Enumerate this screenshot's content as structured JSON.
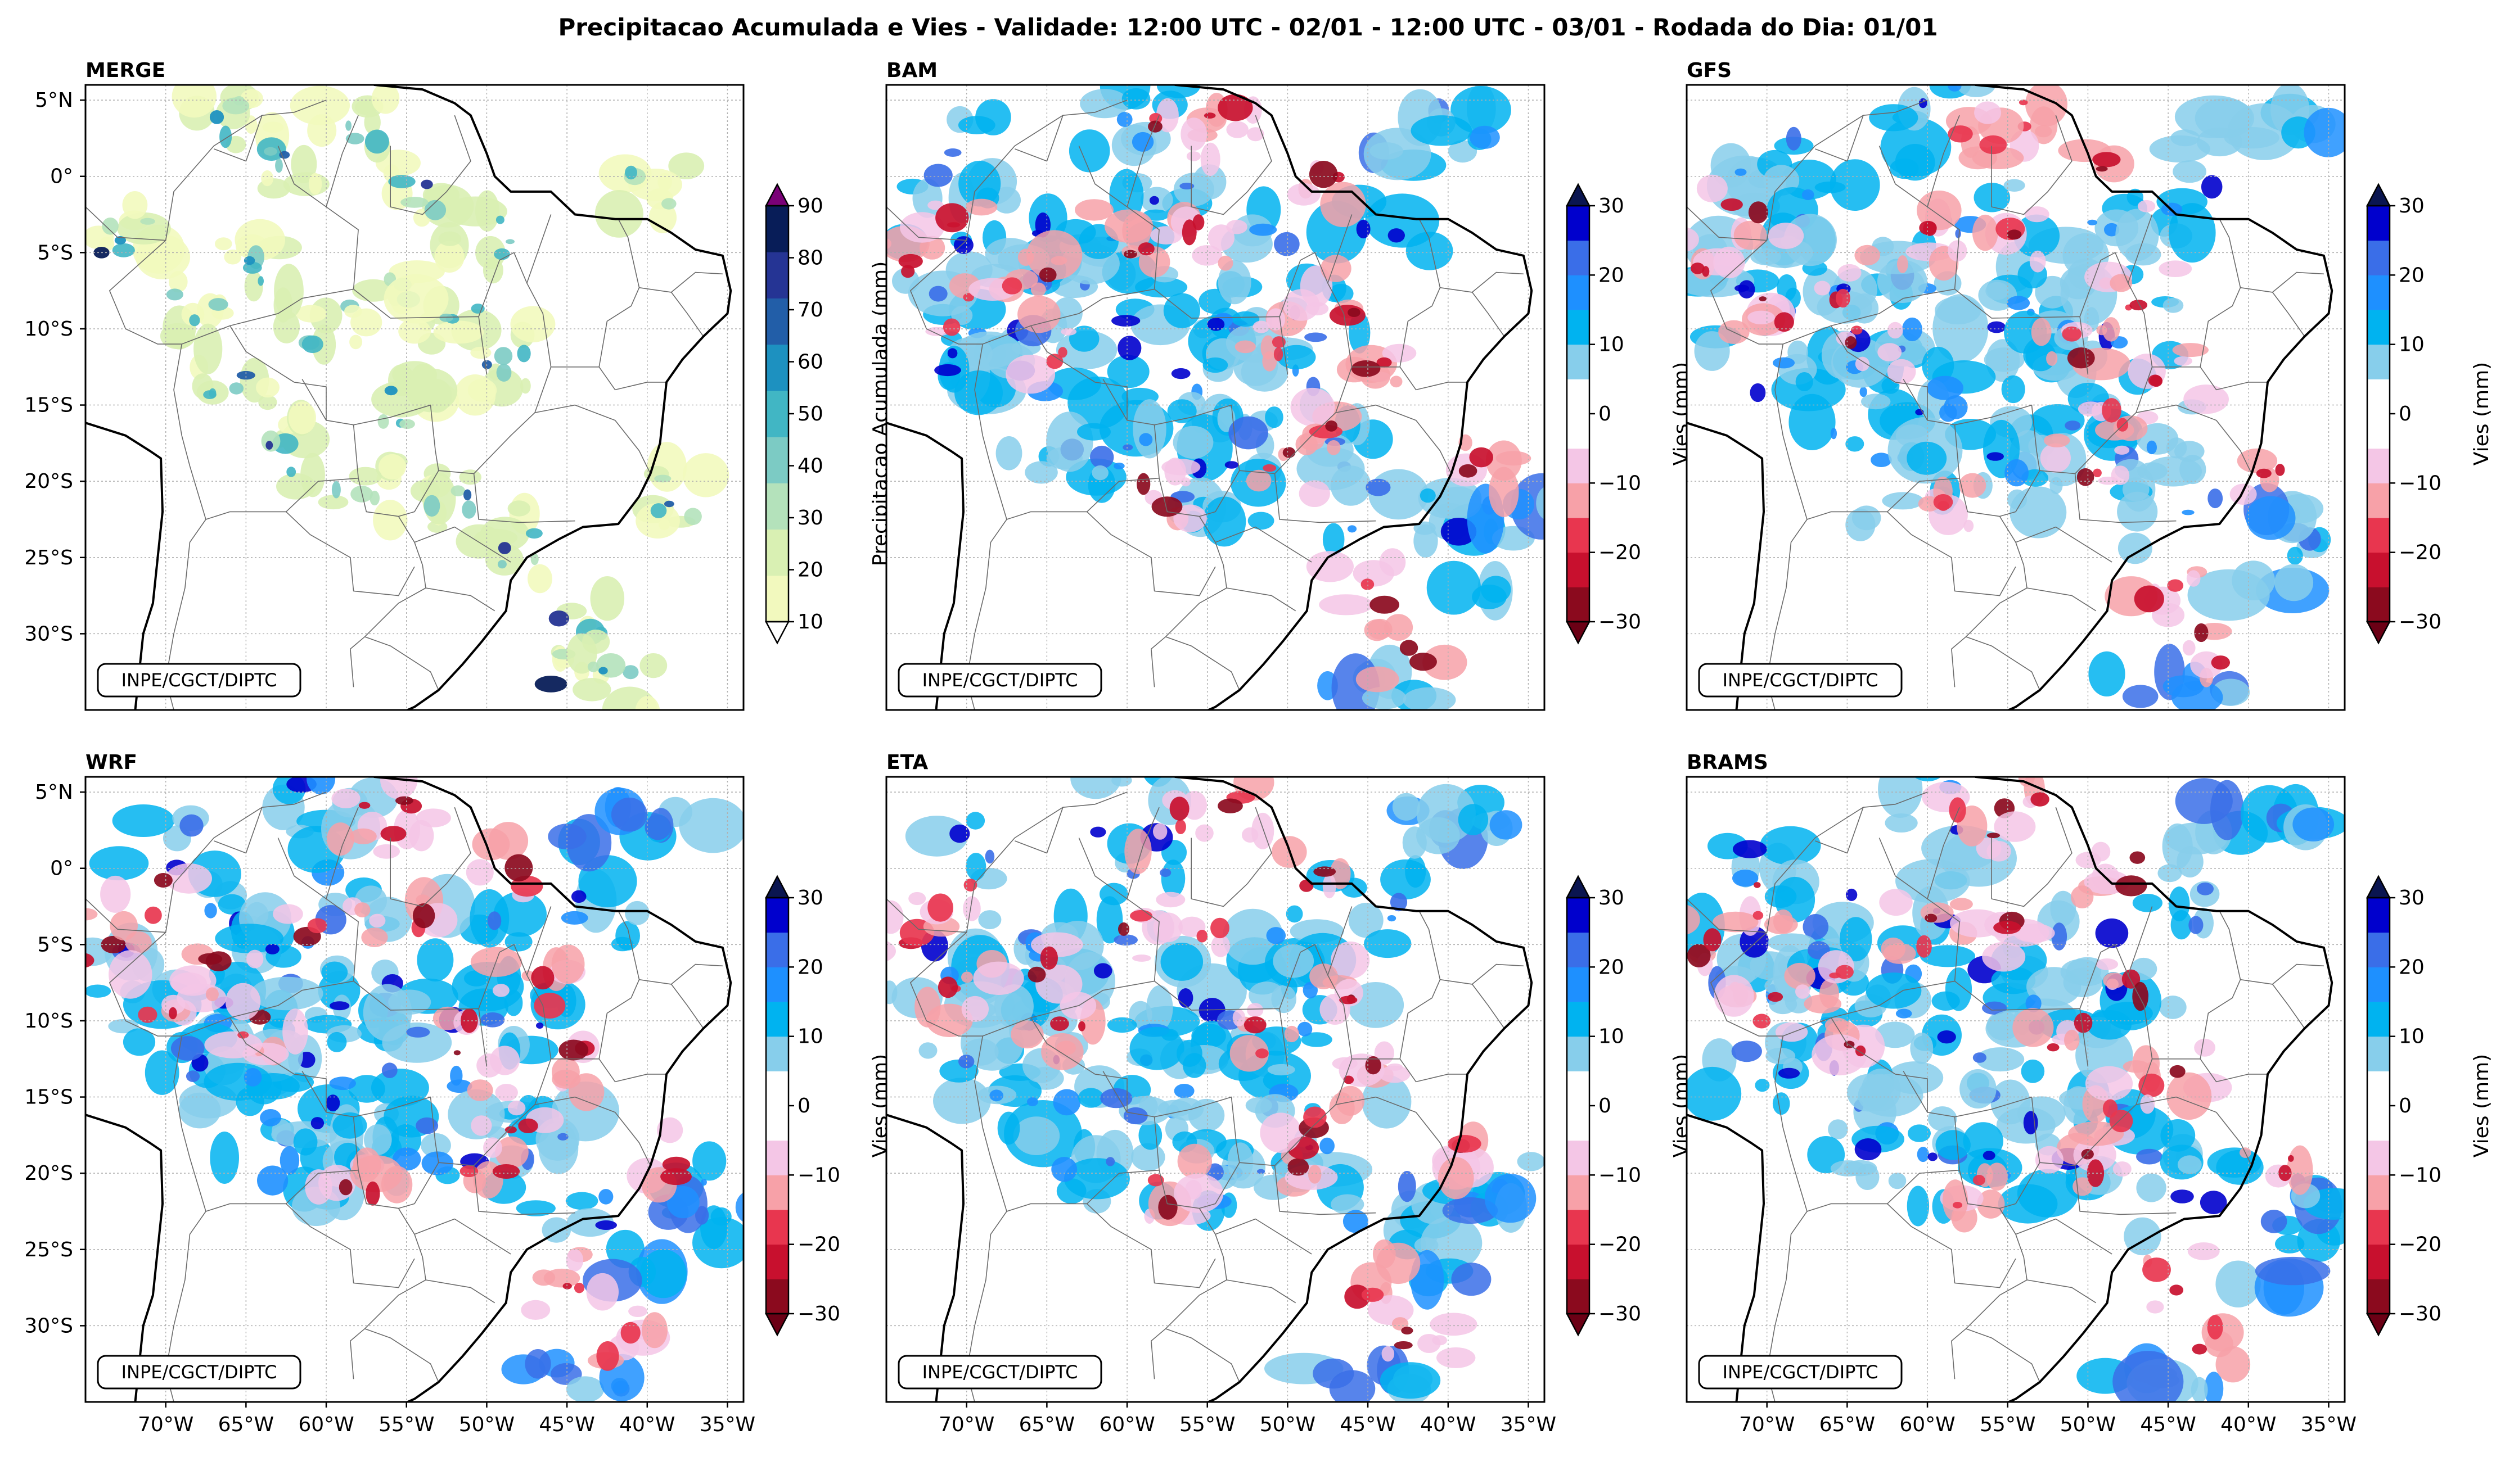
{
  "title": "Precipitacao Acumulada e Vies - Validade: 12:00 UTC - 02/01 - 12:00 UTC - 03/01 - Rodada do Dia: 01/01",
  "credit": "INPE/CGCT/DIPTC",
  "lat_ticks": [
    "5°N",
    "0°",
    "5°S",
    "10°S",
    "15°S",
    "20°S",
    "25°S",
    "30°S"
  ],
  "lon_ticks": [
    "70°W",
    "65°W",
    "60°W",
    "55°W",
    "50°W",
    "45°W",
    "40°W",
    "35°W"
  ],
  "lon_range": [
    -75,
    -34
  ],
  "lat_range": [
    -35,
    6
  ],
  "panels": [
    {
      "name": "MERGE",
      "kind": "accum"
    },
    {
      "name": "BAM",
      "kind": "bias"
    },
    {
      "name": "GFS",
      "kind": "bias"
    },
    {
      "name": "WRF",
      "kind": "bias"
    },
    {
      "name": "ETA",
      "kind": "bias"
    },
    {
      "name": "BRAMS",
      "kind": "bias"
    }
  ],
  "colorbars": {
    "accum": {
      "label": "Precipitacao Acumulada (mm)",
      "ticks": [
        "10",
        "20",
        "30",
        "40",
        "50",
        "60",
        "70",
        "80",
        "90"
      ],
      "colors": [
        "#f2f9be",
        "#d9f0b3",
        "#b4e2bb",
        "#7ccbc4",
        "#41b6c4",
        "#1d91c0",
        "#225ea8",
        "#253494",
        "#081d58"
      ],
      "over": "#7a0177",
      "under": "#ffffff"
    },
    "bias": {
      "label": "Vies (mm)",
      "ticks": [
        "−30",
        "−20",
        "−10",
        "0",
        "10",
        "20",
        "30"
      ],
      "colors": [
        "#8b0a1e",
        "#c8102e",
        "#e8364f",
        "#f7a1a8",
        "#f4c6e6",
        "#ffffff",
        "#ffffff",
        "#87ceeb",
        "#00b3f0",
        "#1e90ff",
        "#3a6ee8",
        "#0000cd"
      ],
      "over": "#0a1550",
      "under": "#6b0015"
    }
  }
}
